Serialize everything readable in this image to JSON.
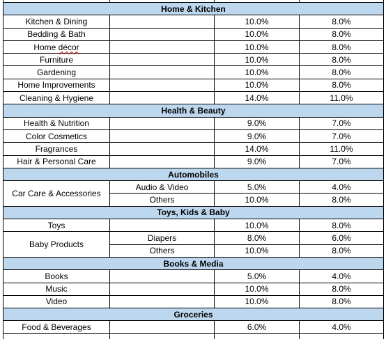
{
  "sections": [
    {
      "title": "Home & Kitchen",
      "rows": [
        {
          "category": "Kitchen & Dining",
          "col1": "10.0%",
          "col2": "8.0%"
        },
        {
          "category": "Bedding & Bath",
          "col1": "10.0%",
          "col2": "8.0%"
        },
        {
          "category_prefix": "Home ",
          "category_spell": "décor",
          "col1": "10.0%",
          "col2": "8.0%"
        },
        {
          "category": "Furniture",
          "col1": "10.0%",
          "col2": "8.0%"
        },
        {
          "category": "Gardening",
          "col1": "10.0%",
          "col2": "8.0%"
        },
        {
          "category": "Home Improvements",
          "col1": "10.0%",
          "col2": "8.0%"
        },
        {
          "category": "Cleaning & Hygiene",
          "col1": "14.0%",
          "col2": "11.0%"
        }
      ]
    },
    {
      "title": "Health & Beauty",
      "rows": [
        {
          "category": "Health & Nutrition",
          "col1": "9.0%",
          "col2": "7.0%"
        },
        {
          "category": "Color Cosmetics",
          "col1": "9.0%",
          "col2": "7.0%"
        },
        {
          "category": "Fragrances",
          "col1": "14.0%",
          "col2": "11.0%"
        },
        {
          "category": "Hair & Personal Care",
          "col1": "9.0%",
          "col2": "7.0%"
        }
      ]
    },
    {
      "title": "Automobiles",
      "group": "Car Care & Accessories",
      "rows": [
        {
          "subcategory": "Audio & Video",
          "col1": "5.0%",
          "col2": "4.0%"
        },
        {
          "subcategory": "Others",
          "col1": "10.0%",
          "col2": "8.0%"
        }
      ]
    },
    {
      "title": "Toys, Kids & Baby",
      "rows": [
        {
          "category": "Toys",
          "col1": "10.0%",
          "col2": "8.0%"
        }
      ],
      "group": "Baby Products",
      "group_rows": [
        {
          "subcategory": "Diapers",
          "col1": "8.0%",
          "col2": "6.0%"
        },
        {
          "subcategory": "Others",
          "col1": "10.0%",
          "col2": "8.0%"
        }
      ]
    },
    {
      "title": "Books & Media",
      "rows": [
        {
          "category": "Books",
          "col1": "5.0%",
          "col2": "4.0%"
        },
        {
          "category": "Music",
          "col1": "10.0%",
          "col2": "8.0%"
        },
        {
          "category": "Video",
          "col1": "10.0%",
          "col2": "8.0%"
        }
      ]
    },
    {
      "title": "Groceries",
      "rows": [
        {
          "category": "Food & Beverages",
          "col1": "6.0%",
          "col2": "4.0%"
        }
      ]
    }
  ]
}
